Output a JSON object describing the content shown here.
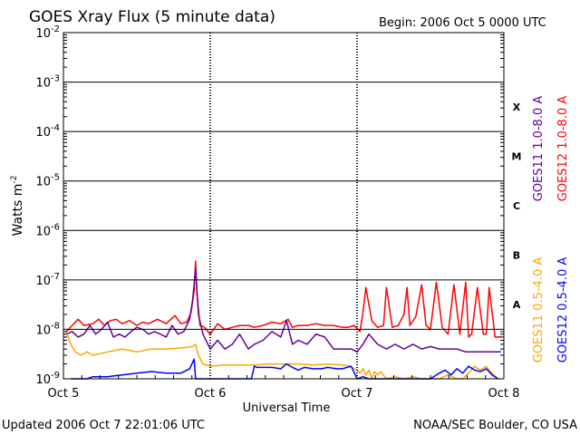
{
  "chart_data": {
    "type": "line",
    "title": "GOES Xray Flux (5 minute data)",
    "begin_label": "Begin:  2006 Oct 5 0000 UTC",
    "xlabel": "Universal Time",
    "ylabel_base": "Watts m",
    "ylabel_exp": "-2",
    "yscale": "log",
    "ylim": [
      1e-09,
      0.01
    ],
    "xlim": [
      0,
      3
    ],
    "x_ticks": [
      {
        "x": 0,
        "label": "Oct 5"
      },
      {
        "x": 1,
        "label": "Oct 6"
      },
      {
        "x": 2,
        "label": "Oct 7"
      },
      {
        "x": 3,
        "label": "Oct 8"
      }
    ],
    "y_ticks": [
      {
        "value": 1e-09,
        "base": "10",
        "exp": "-9"
      },
      {
        "value": 1e-08,
        "base": "10",
        "exp": "-8"
      },
      {
        "value": 1e-07,
        "base": "10",
        "exp": "-7"
      },
      {
        "value": 1e-06,
        "base": "10",
        "exp": "-6"
      },
      {
        "value": 1e-05,
        "base": "10",
        "exp": "-5"
      },
      {
        "value": 0.0001,
        "base": "10",
        "exp": "-4"
      },
      {
        "value": 0.001,
        "base": "10",
        "exp": "-3"
      },
      {
        "value": 0.01,
        "base": "10",
        "exp": "-2"
      }
    ],
    "flare_classes": [
      {
        "label": "A",
        "exp": -7.5
      },
      {
        "label": "B",
        "exp": -6.5
      },
      {
        "label": "C",
        "exp": -5.5
      },
      {
        "label": "M",
        "exp": -4.5
      },
      {
        "label": "X",
        "exp": -3.5
      }
    ],
    "series": [
      {
        "name": "GOES12 1.0-8.0 A",
        "color": "#ff0000",
        "x": [
          0.02,
          0.1,
          0.14,
          0.2,
          0.24,
          0.28,
          0.32,
          0.36,
          0.4,
          0.45,
          0.5,
          0.54,
          0.58,
          0.64,
          0.7,
          0.76,
          0.8,
          0.84,
          0.87,
          0.89,
          0.9,
          0.91,
          0.93,
          0.96,
          1.0,
          1.05,
          1.1,
          1.15,
          1.2,
          1.26,
          1.3,
          1.36,
          1.42,
          1.48,
          1.53,
          1.56,
          1.6,
          1.66,
          1.72,
          1.78,
          1.84,
          1.9,
          1.94,
          1.98,
          2.02,
          2.04,
          2.06,
          2.1,
          2.14,
          2.18,
          2.2,
          2.24,
          2.28,
          2.32,
          2.34,
          2.36,
          2.4,
          2.44,
          2.47,
          2.5,
          2.54,
          2.58,
          2.62,
          2.66,
          2.7,
          2.74,
          2.76,
          2.78,
          2.82,
          2.86,
          2.88,
          2.9,
          2.94,
          2.98
        ],
        "y": [
          9e-09,
          1.6e-08,
          1.2e-08,
          1.3e-08,
          1.6e-08,
          1.2e-08,
          1.5e-08,
          1.6e-08,
          1.3e-08,
          1.5e-08,
          1.2e-08,
          1.4e-08,
          1.3e-08,
          1.6e-08,
          1.3e-08,
          1.9e-08,
          1.3e-08,
          1.4e-08,
          2.2e-08,
          6e-08,
          2.4e-07,
          5e-08,
          1.2e-08,
          1.1e-08,
          8e-09,
          1.3e-08,
          1e-08,
          1.1e-08,
          1.2e-08,
          1.2e-08,
          1.1e-08,
          1.2e-08,
          1.4e-08,
          1.3e-08,
          1.6e-08,
          1.1e-08,
          1.2e-08,
          1.2e-08,
          1.3e-08,
          1.2e-08,
          1.2e-08,
          1.1e-08,
          1.1e-08,
          1.2e-08,
          9e-09,
          2.2e-08,
          7e-08,
          1.5e-08,
          1.1e-08,
          1.2e-08,
          7e-08,
          1.1e-08,
          1.2e-08,
          2e-08,
          7e-08,
          1.2e-08,
          1.8e-08,
          8e-08,
          1.2e-08,
          1e-08,
          9e-08,
          1.1e-08,
          8e-09,
          8e-08,
          8e-09,
          9e-08,
          7e-09,
          8e-09,
          7e-08,
          8e-09,
          8e-09,
          7e-08,
          7e-09,
          7e-09
        ]
      },
      {
        "name": "GOES11 1.0-8.0 A",
        "color": "#660099",
        "x": [
          0.02,
          0.06,
          0.1,
          0.14,
          0.18,
          0.22,
          0.26,
          0.3,
          0.34,
          0.38,
          0.42,
          0.46,
          0.5,
          0.54,
          0.58,
          0.62,
          0.66,
          0.7,
          0.74,
          0.78,
          0.82,
          0.86,
          0.88,
          0.9,
          0.92,
          0.95,
          1.0,
          1.05,
          1.1,
          1.15,
          1.2,
          1.26,
          1.3,
          1.36,
          1.42,
          1.48,
          1.52,
          1.56,
          1.6,
          1.66,
          1.72,
          1.78,
          1.84,
          1.9,
          1.96,
          2.0,
          2.04,
          2.08,
          2.14,
          2.2,
          2.26,
          2.32,
          2.38,
          2.44,
          2.5,
          2.56,
          2.62,
          2.68,
          2.74,
          2.8,
          2.86,
          2.92,
          2.98
        ],
        "y": [
          8e-09,
          9e-09,
          7e-09,
          8e-09,
          1.2e-08,
          8e-09,
          1e-08,
          1.4e-08,
          7e-09,
          8e-09,
          7e-09,
          9e-09,
          1.1e-08,
          1e-08,
          8e-09,
          9e-09,
          8e-09,
          7e-09,
          1.2e-08,
          8e-09,
          9e-09,
          1.6e-08,
          4e-08,
          1.7e-07,
          2e-08,
          8e-09,
          4e-09,
          6e-09,
          4e-09,
          5e-09,
          8e-09,
          4e-09,
          5e-09,
          6e-09,
          9e-09,
          7e-09,
          1.5e-08,
          5e-09,
          6e-09,
          5e-09,
          8e-09,
          7e-09,
          4e-09,
          4e-09,
          4e-09,
          3.5e-09,
          5e-09,
          8e-09,
          5e-09,
          4e-09,
          5e-09,
          4e-09,
          5e-09,
          4e-09,
          4.5e-09,
          4e-09,
          4e-09,
          4e-09,
          3.5e-09,
          3.5e-09,
          3.5e-09,
          3.5e-09,
          3.5e-09
        ]
      },
      {
        "name": "GOES11 0.5-4.0 A",
        "color": "#ffa500",
        "x": [
          0.02,
          0.05,
          0.08,
          0.12,
          0.16,
          0.2,
          0.3,
          0.4,
          0.5,
          0.6,
          0.7,
          0.8,
          0.88,
          0.9,
          0.92,
          0.95,
          1.0,
          1.1,
          1.2,
          1.3,
          1.4,
          1.5,
          1.6,
          1.7,
          1.8,
          1.9,
          1.95,
          2.0,
          2.02,
          2.04,
          2.06,
          2.08,
          2.1,
          2.12,
          2.14,
          2.16,
          2.2,
          2.26,
          2.32,
          2.38,
          2.44,
          2.5,
          2.56,
          2.62,
          2.68,
          2.72,
          2.76,
          2.8,
          2.84,
          2.88,
          2.92,
          2.96
        ],
        "y": [
          9e-09,
          5e-09,
          3.5e-09,
          3e-09,
          3.5e-09,
          3e-09,
          3.5e-09,
          4e-09,
          3.5e-09,
          4e-09,
          4e-09,
          4.2e-09,
          4.5e-09,
          5e-09,
          3e-09,
          2e-09,
          1.8e-09,
          1.9e-09,
          1.9e-09,
          1.9e-09,
          2e-09,
          2e-09,
          2e-09,
          1.9e-09,
          2e-09,
          1.9e-09,
          1.8e-09,
          1.5e-09,
          1.3e-09,
          1.6e-09,
          1.2e-09,
          1.5e-09,
          1e-09,
          1.4e-09,
          1.2e-09,
          1.4e-09,
          1e-09,
          1.1e-09,
          1e-09,
          1.1e-09,
          1e-09,
          1e-09,
          1e-09,
          1.2e-09,
          1e-09,
          1e-09,
          1.3e-09,
          1.8e-09,
          1.5e-09,
          1.8e-09,
          1.3e-09,
          1e-09
        ]
      },
      {
        "name": "GOES12 0.5-4.0 A",
        "color": "#0000ff",
        "x": [
          0.05,
          0.08,
          0.12,
          0.16,
          0.2,
          0.3,
          0.4,
          0.5,
          0.6,
          0.7,
          0.8,
          0.86,
          0.89,
          0.9,
          0.91,
          0.93,
          1.0,
          1.1,
          1.2,
          1.28,
          1.3,
          1.32,
          1.36,
          1.42,
          1.48,
          1.52,
          1.56,
          1.6,
          1.64,
          1.7,
          1.76,
          1.8,
          1.86,
          1.9,
          1.96,
          2.0,
          2.04,
          2.08,
          2.12,
          2.16,
          2.2,
          2.26,
          2.32,
          2.38,
          2.44,
          2.5,
          2.56,
          2.6,
          2.64,
          2.68,
          2.72,
          2.76,
          2.8,
          2.84,
          2.88,
          2.92,
          2.96
        ],
        "y": [
          1e-09,
          1e-09,
          1e-09,
          1e-09,
          1.1e-09,
          1.1e-09,
          1.2e-09,
          1.3e-09,
          1.4e-09,
          1.3e-09,
          1.3e-09,
          1.6e-09,
          2.5e-09,
          1e-09,
          1e-09,
          1e-09,
          1e-09,
          1e-09,
          1e-09,
          1e-09,
          1.8e-09,
          1.7e-09,
          1.7e-09,
          1.7e-09,
          1.6e-09,
          2e-09,
          1.7e-09,
          1.5e-09,
          1.7e-09,
          1.6e-09,
          1.6e-09,
          1.7e-09,
          1.6e-09,
          1.6e-09,
          1.8e-09,
          1e-09,
          1.1e-09,
          1e-09,
          1e-09,
          1e-09,
          1e-09,
          1e-09,
          1e-09,
          1e-09,
          1e-09,
          1e-09,
          1.3e-09,
          1.5e-09,
          1.2e-09,
          1.6e-09,
          1.3e-09,
          1.8e-09,
          1.5e-09,
          1.4e-09,
          1.6e-09,
          1.2e-09,
          1e-09
        ]
      }
    ],
    "footer_left": "Updated 2006 Oct  7 22:01:06 UTC",
    "footer_right": "NOAA/SEC Boulder, CO USA"
  }
}
